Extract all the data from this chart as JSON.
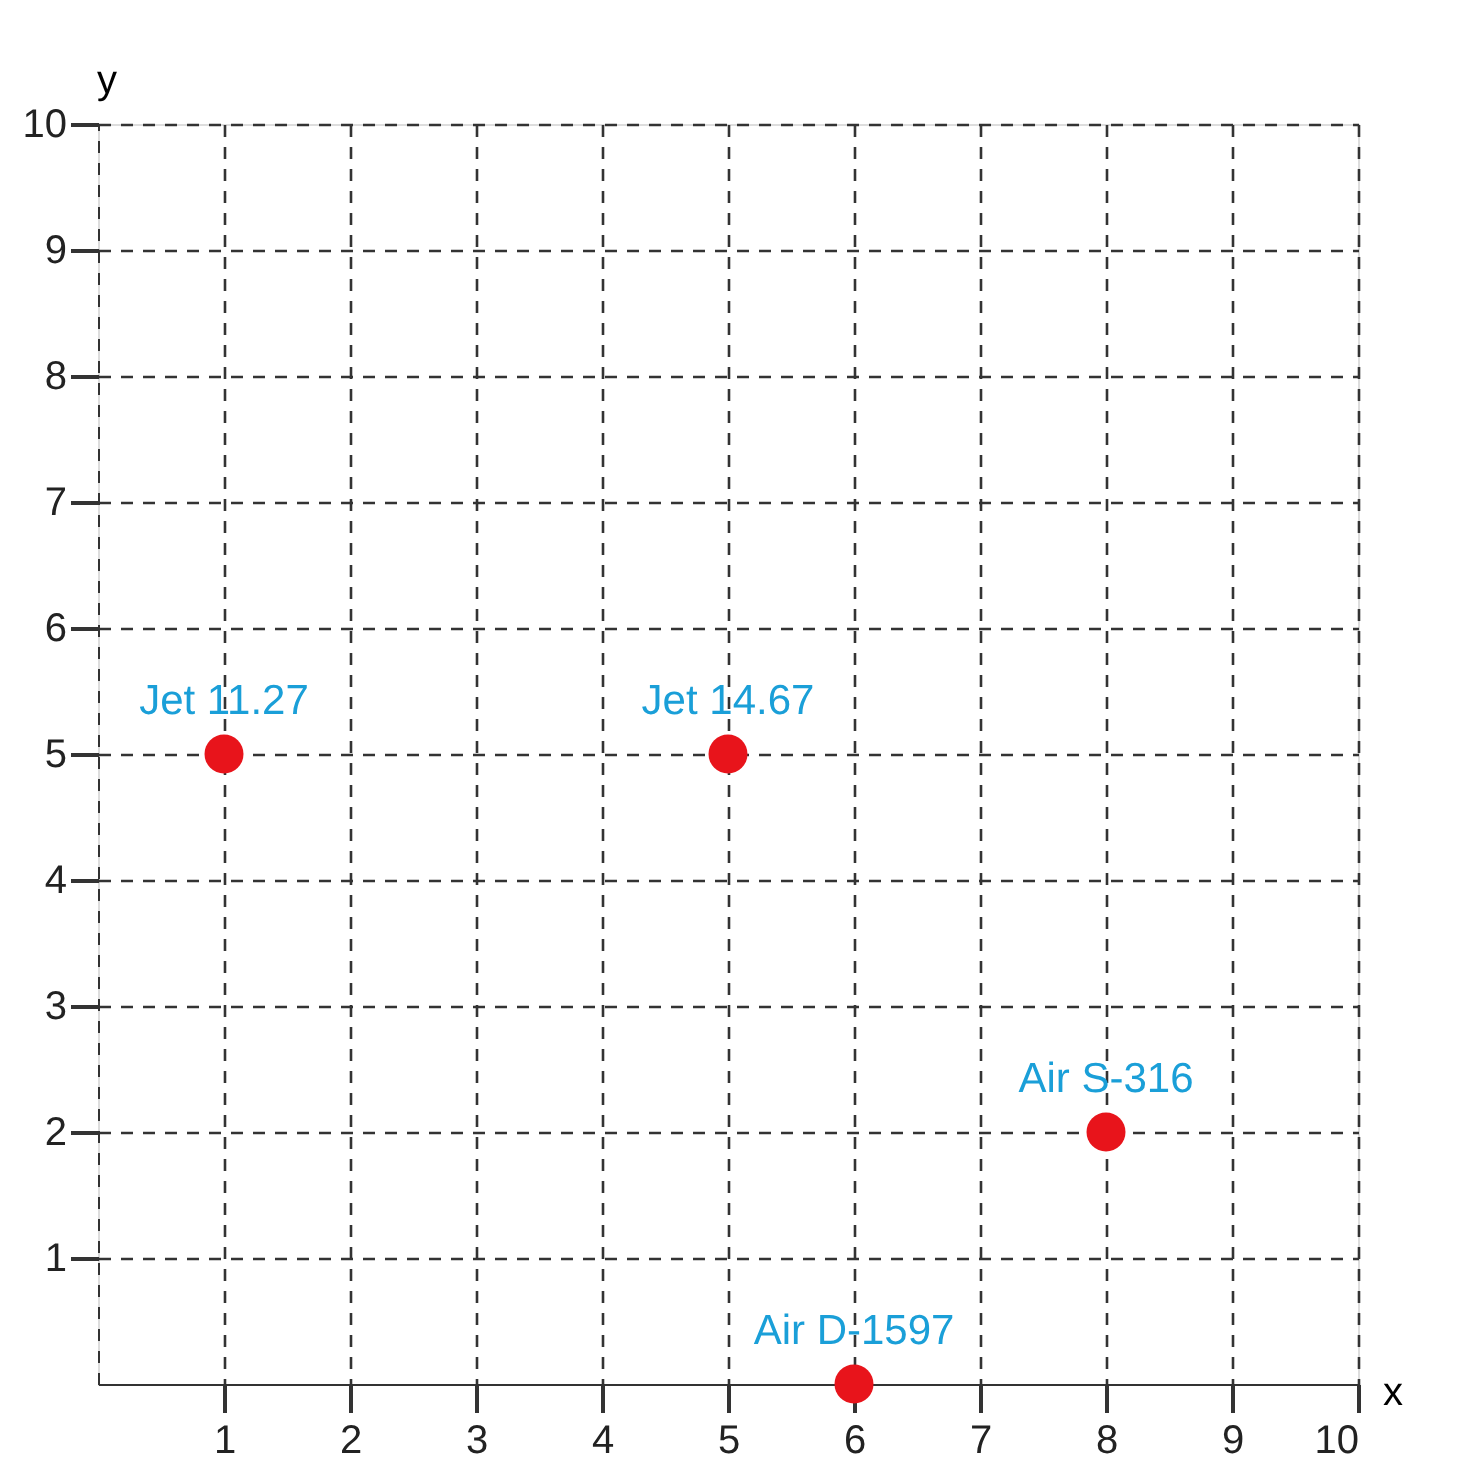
{
  "chart_data": {
    "type": "scatter",
    "xlabel": "x",
    "ylabel": "y",
    "x": [
      1,
      5,
      8,
      6
    ],
    "series": [
      {
        "color": "#e8141b",
        "values": [
          5,
          5,
          2,
          0
        ]
      }
    ],
    "annotations": [
      {
        "text": "Jet 11.27",
        "x": 1,
        "y": 5
      },
      {
        "text": "Jet 14.67",
        "x": 5,
        "y": 5
      },
      {
        "text": "Air S-316",
        "x": 8,
        "y": 2
      },
      {
        "text": "Air D-1597",
        "x": 6,
        "y": 0
      }
    ],
    "xlim": [
      0,
      10
    ],
    "ylim": [
      0,
      10
    ],
    "xticks": [
      1,
      2,
      3,
      4,
      5,
      6,
      7,
      8,
      9,
      10
    ],
    "yticks": [
      1,
      2,
      3,
      4,
      5,
      6,
      7,
      8,
      9,
      10
    ],
    "grid": true,
    "marker": "circle"
  }
}
